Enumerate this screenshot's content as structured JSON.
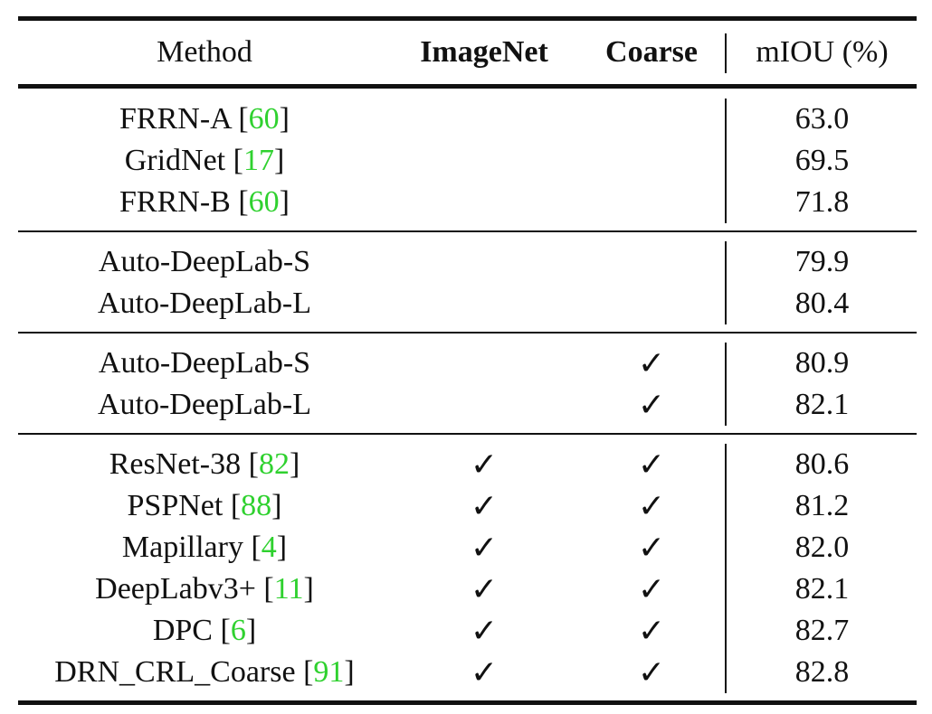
{
  "header": {
    "method": "Method",
    "imagenet": "ImageNet",
    "coarse": "Coarse",
    "miou": "mIOU (%)"
  },
  "check_symbol": "✓",
  "groups": [
    {
      "rows": [
        {
          "method": "FRRN-A [",
          "ref": "60",
          "close": "]",
          "imagenet": "",
          "coarse": "",
          "miou": "63.0"
        },
        {
          "method": "GridNet [",
          "ref": "17",
          "close": "]",
          "imagenet": "",
          "coarse": "",
          "miou": "69.5"
        },
        {
          "method": "FRRN-B [",
          "ref": "60",
          "close": "]",
          "imagenet": "",
          "coarse": "",
          "miou": "71.8"
        }
      ]
    },
    {
      "rows": [
        {
          "method": "Auto-DeepLab-S",
          "ref": "",
          "close": "",
          "imagenet": "",
          "coarse": "",
          "miou": "79.9"
        },
        {
          "method": "Auto-DeepLab-L",
          "ref": "",
          "close": "",
          "imagenet": "",
          "coarse": "",
          "miou": "80.4"
        }
      ]
    },
    {
      "rows": [
        {
          "method": "Auto-DeepLab-S",
          "ref": "",
          "close": "",
          "imagenet": "",
          "coarse": "✓",
          "miou": "80.9"
        },
        {
          "method": "Auto-DeepLab-L",
          "ref": "",
          "close": "",
          "imagenet": "",
          "coarse": "✓",
          "miou": "82.1"
        }
      ]
    },
    {
      "rows": [
        {
          "method": "ResNet-38 [",
          "ref": "82",
          "close": "]",
          "imagenet": "✓",
          "coarse": "✓",
          "miou": "80.6"
        },
        {
          "method": "PSPNet [",
          "ref": "88",
          "close": "]",
          "imagenet": "✓",
          "coarse": "✓",
          "miou": "81.2"
        },
        {
          "method": "Mapillary [",
          "ref": "4",
          "close": "]",
          "imagenet": "✓",
          "coarse": "✓",
          "miou": "82.0"
        },
        {
          "method": "DeepLabv3+ [",
          "ref": "11",
          "close": "]",
          "imagenet": "✓",
          "coarse": "✓",
          "miou": "82.1"
        },
        {
          "method": "DPC [",
          "ref": "6",
          "close": "]",
          "imagenet": "✓",
          "coarse": "✓",
          "miou": "82.7"
        },
        {
          "method": "DRN_CRL_Coarse [",
          "ref": "91",
          "close": "]",
          "imagenet": "✓",
          "coarse": "✓",
          "miou": "82.8"
        }
      ]
    }
  ],
  "colors": {
    "text": "#111111",
    "reference": "#2fd12f",
    "rules": "#111111"
  }
}
